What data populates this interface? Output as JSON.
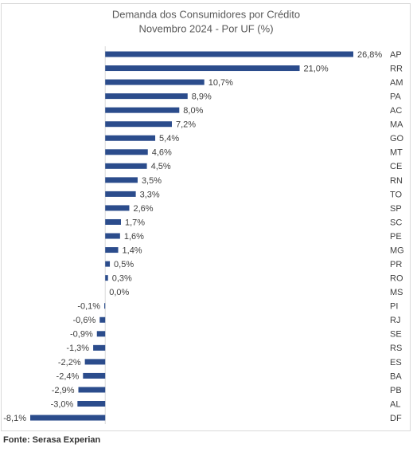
{
  "chart_data": {
    "type": "bar",
    "orientation": "horizontal",
    "title": "Demanda dos Consumidores por Crédito",
    "subtitle": "Novembro 2024 - Por UF (%)",
    "categories": [
      "AP",
      "RR",
      "AM",
      "PA",
      "AC",
      "MA",
      "GO",
      "MT",
      "CE",
      "RN",
      "TO",
      "SP",
      "SC",
      "PE",
      "MG",
      "PR",
      "RO",
      "MS",
      "PI",
      "RJ",
      "SE",
      "RS",
      "ES",
      "BA",
      "PB",
      "AL",
      "DF"
    ],
    "values": [
      26.8,
      21.0,
      10.7,
      8.9,
      8.0,
      7.2,
      5.4,
      4.6,
      4.5,
      3.5,
      3.3,
      2.6,
      1.7,
      1.6,
      1.4,
      0.5,
      0.3,
      0.0,
      -0.1,
      -0.6,
      -0.9,
      -1.3,
      -2.2,
      -2.4,
      -2.9,
      -3.0,
      -8.1
    ],
    "value_labels": [
      "26,8%",
      "21,0%",
      "10,7%",
      "8,9%",
      "8,0%",
      "7,2%",
      "5,4%",
      "4,6%",
      "4,5%",
      "3,5%",
      "3,3%",
      "2,6%",
      "1,7%",
      "1,6%",
      "1,4%",
      "0,5%",
      "0,3%",
      "0,0%",
      "-0,1%",
      "-0,6%",
      "-0,9%",
      "-1,3%",
      "-2,2%",
      "-2,4%",
      "-2,9%",
      "-3,0%",
      "-8,1%"
    ],
    "color": "#2b4c8c",
    "source": "Fonte: Serasa Experian"
  }
}
